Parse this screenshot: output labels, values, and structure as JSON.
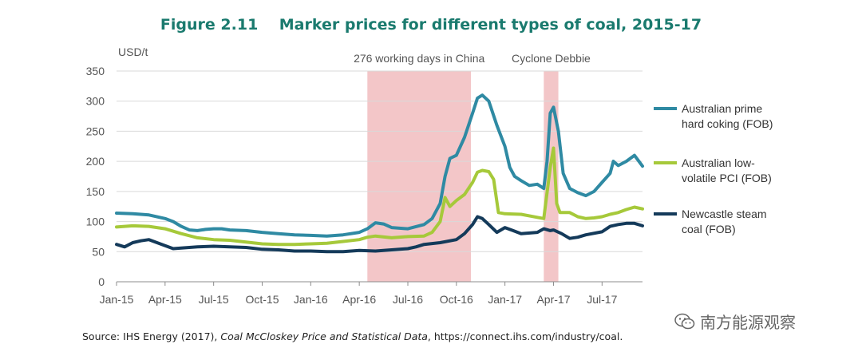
{
  "chart_data": {
    "type": "line",
    "title": "Figure 2.11    Marker prices for different types of coal, 2015-17",
    "ylabel": "USD/t",
    "ylim": [
      0,
      350
    ],
    "yticks": [
      0,
      50,
      100,
      150,
      200,
      250,
      300,
      350
    ],
    "grid": true,
    "x_range_months": [
      0,
      32.5
    ],
    "xtick_labels": [
      "Jan-15",
      "Apr-15",
      "Jul-15",
      "Oct-15",
      "Jan-16",
      "Apr-16",
      "Jul-16",
      "Oct-16",
      "Jan-17",
      "Apr-17",
      "Jul-17"
    ],
    "xtick_months": [
      0,
      3,
      6,
      9,
      12,
      15,
      18,
      21,
      24,
      27,
      30
    ],
    "annotations": [
      {
        "label": "276 working days in China",
        "start_month": 15.5,
        "end_month": 21.9
      },
      {
        "label": "Cyclone Debbie",
        "start_month": 26.4,
        "end_month": 27.3
      }
    ],
    "legend_position": "right",
    "series": [
      {
        "name": "Australian prime hard coking (FOB)",
        "legend_lines": [
          "Australian prime",
          "hard coking (FOB)"
        ],
        "color": "#2f8aa3",
        "points": [
          [
            0,
            114
          ],
          [
            1,
            113
          ],
          [
            2,
            111
          ],
          [
            3,
            105
          ],
          [
            3.5,
            100
          ],
          [
            4,
            92
          ],
          [
            4.5,
            86
          ],
          [
            5,
            85
          ],
          [
            5.5,
            87
          ],
          [
            6,
            88
          ],
          [
            6.5,
            88
          ],
          [
            7,
            86
          ],
          [
            8,
            85
          ],
          [
            9,
            82
          ],
          [
            10,
            80
          ],
          [
            11,
            78
          ],
          [
            12,
            77
          ],
          [
            13,
            76
          ],
          [
            14,
            78
          ],
          [
            15,
            82
          ],
          [
            15.5,
            88
          ],
          [
            16,
            98
          ],
          [
            16.5,
            96
          ],
          [
            17,
            90
          ],
          [
            18,
            88
          ],
          [
            19,
            95
          ],
          [
            19.5,
            105
          ],
          [
            20,
            130
          ],
          [
            20.3,
            175
          ],
          [
            20.6,
            205
          ],
          [
            21,
            210
          ],
          [
            21.5,
            240
          ],
          [
            22,
            280
          ],
          [
            22.3,
            305
          ],
          [
            22.6,
            310
          ],
          [
            23,
            300
          ],
          [
            23.5,
            260
          ],
          [
            24,
            225
          ],
          [
            24.3,
            190
          ],
          [
            24.6,
            175
          ],
          [
            25,
            168
          ],
          [
            25.5,
            160
          ],
          [
            26,
            162
          ],
          [
            26.4,
            155
          ],
          [
            26.6,
            200
          ],
          [
            26.8,
            280
          ],
          [
            27,
            290
          ],
          [
            27.3,
            250
          ],
          [
            27.6,
            180
          ],
          [
            28,
            155
          ],
          [
            28.5,
            148
          ],
          [
            29,
            143
          ],
          [
            29.5,
            150
          ],
          [
            30,
            165
          ],
          [
            30.5,
            180
          ],
          [
            30.7,
            200
          ],
          [
            31,
            193
          ],
          [
            31.5,
            200
          ],
          [
            32,
            210
          ],
          [
            32.5,
            192
          ]
        ]
      },
      {
        "name": "Australian low-volatile PCI (FOB)",
        "legend_lines": [
          "Australian low-",
          "volatile PCI (FOB)"
        ],
        "color": "#a6c93a",
        "points": [
          [
            0,
            91
          ],
          [
            1,
            93
          ],
          [
            2,
            92
          ],
          [
            3,
            88
          ],
          [
            4,
            80
          ],
          [
            5,
            73
          ],
          [
            6,
            70
          ],
          [
            7,
            69
          ],
          [
            8,
            66
          ],
          [
            9,
            63
          ],
          [
            10,
            62
          ],
          [
            11,
            62
          ],
          [
            12,
            63
          ],
          [
            13,
            64
          ],
          [
            14,
            67
          ],
          [
            15,
            70
          ],
          [
            15.5,
            74
          ],
          [
            16,
            76
          ],
          [
            17,
            73
          ],
          [
            18,
            75
          ],
          [
            19,
            76
          ],
          [
            19.5,
            82
          ],
          [
            20,
            100
          ],
          [
            20.3,
            140
          ],
          [
            20.6,
            125
          ],
          [
            21,
            135
          ],
          [
            21.5,
            145
          ],
          [
            22,
            165
          ],
          [
            22.3,
            182
          ],
          [
            22.6,
            185
          ],
          [
            23,
            183
          ],
          [
            23.3,
            170
          ],
          [
            23.6,
            115
          ],
          [
            24,
            113
          ],
          [
            25,
            112
          ],
          [
            26,
            107
          ],
          [
            26.4,
            105
          ],
          [
            26.8,
            190
          ],
          [
            27,
            222
          ],
          [
            27.2,
            130
          ],
          [
            27.4,
            115
          ],
          [
            28,
            115
          ],
          [
            28.5,
            108
          ],
          [
            29,
            105
          ],
          [
            29.5,
            106
          ],
          [
            30,
            108
          ],
          [
            30.5,
            112
          ],
          [
            31,
            115
          ],
          [
            31.5,
            120
          ],
          [
            32,
            124
          ],
          [
            32.5,
            121
          ]
        ]
      },
      {
        "name": "Newcastle steam coal (FOB)",
        "legend_lines": [
          "Newcastle steam",
          "coal (FOB)"
        ],
        "color": "#143a5a",
        "points": [
          [
            0,
            62
          ],
          [
            0.5,
            58
          ],
          [
            1,
            65
          ],
          [
            1.5,
            68
          ],
          [
            2,
            70
          ],
          [
            2.5,
            65
          ],
          [
            3,
            60
          ],
          [
            3.5,
            55
          ],
          [
            4,
            56
          ],
          [
            5,
            58
          ],
          [
            6,
            59
          ],
          [
            7,
            58
          ],
          [
            8,
            57
          ],
          [
            9,
            54
          ],
          [
            10,
            53
          ],
          [
            11,
            51
          ],
          [
            12,
            51
          ],
          [
            13,
            50
          ],
          [
            14,
            50
          ],
          [
            15,
            52
          ],
          [
            16,
            51
          ],
          [
            17,
            53
          ],
          [
            18,
            55
          ],
          [
            18.5,
            58
          ],
          [
            19,
            62
          ],
          [
            20,
            65
          ],
          [
            21,
            70
          ],
          [
            21.5,
            80
          ],
          [
            22,
            95
          ],
          [
            22.3,
            108
          ],
          [
            22.6,
            105
          ],
          [
            23,
            95
          ],
          [
            23.5,
            82
          ],
          [
            24,
            90
          ],
          [
            24.5,
            85
          ],
          [
            25,
            80
          ],
          [
            26,
            82
          ],
          [
            26.4,
            88
          ],
          [
            26.8,
            85
          ],
          [
            27,
            86
          ],
          [
            27.5,
            80
          ],
          [
            28,
            72
          ],
          [
            28.5,
            74
          ],
          [
            29,
            78
          ],
          [
            30,
            83
          ],
          [
            30.5,
            92
          ],
          [
            31,
            95
          ],
          [
            31.5,
            97
          ],
          [
            32,
            97
          ],
          [
            32.5,
            93
          ]
        ]
      }
    ]
  },
  "source": {
    "prefix": "Source: IHS Energy (2017), ",
    "title": "Coal McCloskey Price and Statistical Data",
    "suffix": ", https://connect.ihs.com/industry/coal."
  },
  "watermark": {
    "text": "南方能源观察",
    "icon": "wechat-icon"
  }
}
